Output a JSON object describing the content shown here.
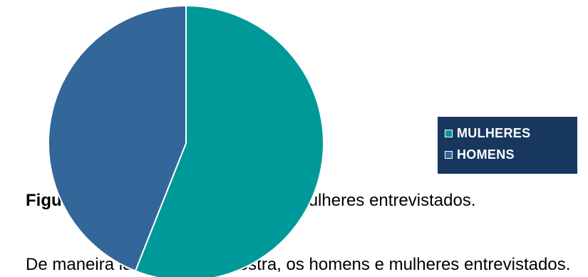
{
  "caption": {
    "figure_label": "Figura",
    "visible_text": "s e mulheres entrevistados."
  },
  "body_text": "De maneira identificar, a amostra, os homens e mulheres entrevistados.",
  "chart_data": {
    "type": "pie",
    "categories": [
      "MULHERES",
      "HOMENS"
    ],
    "values": [
      56,
      44
    ],
    "colors": [
      "#009999",
      "#336699"
    ],
    "legend_placement": "right",
    "legend_background": "#17375e"
  }
}
